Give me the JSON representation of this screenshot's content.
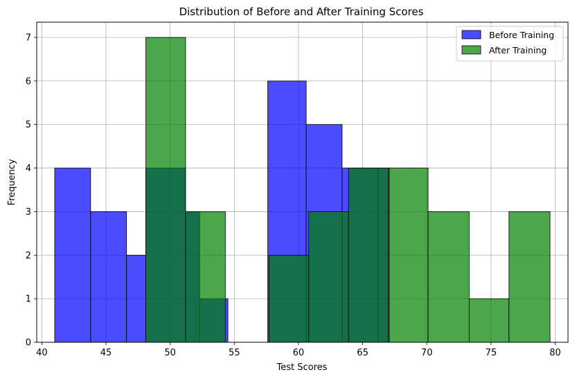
{
  "chart_data": {
    "type": "bar",
    "title": "Distribution of Before and After Training Scores",
    "xlabel": "Test Scores",
    "ylabel": "Frequency",
    "xlim": [
      39.6,
      81.0
    ],
    "ylim": [
      0,
      7.35
    ],
    "grid": true,
    "legend_position": "top-right",
    "x_ticks": [
      40,
      45,
      50,
      55,
      60,
      65,
      70,
      75,
      80
    ],
    "y_ticks": [
      0,
      1,
      2,
      3,
      4,
      5,
      6,
      7
    ],
    "series": [
      {
        "name": "Before Training",
        "color": "#0000ff",
        "opacity": 0.7,
        "bin_edges": [
          41.0,
          43.8,
          46.6,
          48.1,
          51.2,
          52.3,
          54.5,
          55.2,
          57.6,
          60.6,
          63.4,
          66.2,
          67.1,
          69.0
        ],
        "counts": [
          4,
          3,
          2,
          4,
          3,
          1,
          0,
          0,
          6,
          5,
          4,
          4,
          0
        ]
      },
      {
        "name": "After Training",
        "color": "#008000",
        "opacity": 0.7,
        "bin_edges": [
          48.1,
          51.2,
          54.3,
          57.7,
          60.8,
          63.9,
          67.0,
          70.1,
          73.3,
          76.4,
          79.6
        ],
        "counts": [
          7,
          3,
          0,
          2,
          3,
          4,
          4,
          3,
          1,
          3
        ]
      }
    ]
  }
}
